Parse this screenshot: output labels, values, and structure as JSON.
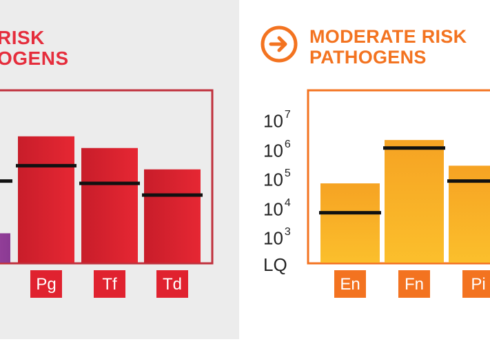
{
  "left_panel": {
    "title_lines": [
      "RISK",
      "OGENS"
    ],
    "colors": {
      "title": "#e52d3c",
      "frame": "#c0303c",
      "bar": "#e0222f",
      "bar_dark": "#c81d2a",
      "purple": "#9b3f9a"
    }
  },
  "right_panel": {
    "icon": "arrow-right-circle-icon",
    "title_lines": [
      "MODERATE RISK",
      "PATHOGENS"
    ],
    "colors": {
      "title": "#f37320",
      "frame": "#f37320",
      "bar_top": "#f7b02a",
      "bar_bottom": "#f58a24",
      "label_bg": "#f37320"
    }
  },
  "chart_data": [
    {
      "type": "bar",
      "scale": "log",
      "y_ticks": [
        "LQ",
        "10^3",
        "10^4",
        "10^5",
        "10^6",
        "10^7"
      ],
      "categories": [
        "",
        "Pg",
        "Tf",
        "Td"
      ],
      "series": [
        {
          "values": [
            1000,
            2000000,
            800000,
            150000
          ]
        },
        {
          "values": [
            60000,
            200000,
            50000,
            20000
          ]
        }
      ]
    },
    {
      "type": "bar",
      "scale": "log",
      "y_ticks": [
        "LQ",
        "10^3",
        "10^4",
        "10^5",
        "10^6",
        "10^7"
      ],
      "y_tick_labels": [
        {
          "base": "LQ",
          "exp": ""
        },
        {
          "base": "10",
          "exp": "3"
        },
        {
          "base": "10",
          "exp": "4"
        },
        {
          "base": "10",
          "exp": "5"
        },
        {
          "base": "10",
          "exp": "6"
        },
        {
          "base": "10",
          "exp": "7"
        }
      ],
      "categories": [
        "En",
        "Fn",
        "Pi"
      ],
      "series": [
        {
          "values": [
            50000,
            1500000,
            200000
          ]
        },
        {
          "values": [
            5000,
            800000,
            60000
          ]
        }
      ]
    }
  ]
}
